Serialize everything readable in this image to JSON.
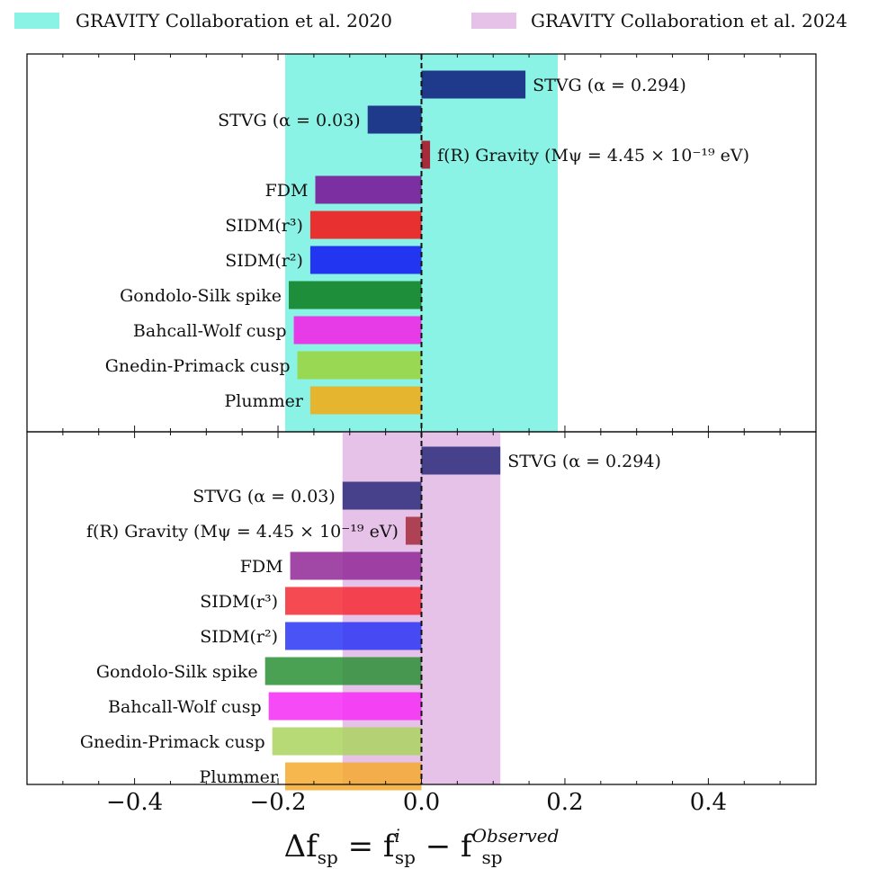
{
  "chart_data": {
    "type": "bar",
    "orientation": "horizontal",
    "xlim": [
      -0.55,
      0.55
    ],
    "xticks": [
      -0.4,
      -0.2,
      0.0,
      0.2,
      0.4
    ],
    "xtick_labels": [
      "−0.4",
      "−0.2",
      "0.0",
      "0.2",
      "0.4"
    ],
    "xlabel": "Δf_sp = f_sp^i − f_sp^Observed",
    "xlabel_parts": {
      "delta": "Δ",
      "f": "f",
      "sp": "sp",
      "eq": " = ",
      "minus": " − ",
      "sup_i": "i",
      "sup_obs": "Observed"
    },
    "legend": [
      {
        "label": "GRAVITY Collaboration et al. 2020",
        "color": "#8af3e5"
      },
      {
        "label": "GRAVITY Collaboration et al. 2024",
        "color": "#e6c1e8"
      }
    ],
    "panels": [
      {
        "name": "top",
        "band": [
          -0.19,
          0.19
        ],
        "band_color": "#8af3e5",
        "series": [
          {
            "label": "STVG (α = 0.294)",
            "value": 0.145,
            "color": "#1f3a8a"
          },
          {
            "label": "STVG (α = 0.03)",
            "value": -0.075,
            "color": "#1f3a8a"
          },
          {
            "label": "f(R) Gravity (Mψ = 4.45 × 10⁻¹⁹ eV)",
            "value": 0.012,
            "color": "#a52a3a"
          },
          {
            "label": "FDM",
            "value": -0.148,
            "color": "#7b2fa0"
          },
          {
            "label": "SIDM(r³)",
            "value": -0.155,
            "color": "#e83030"
          },
          {
            "label": "SIDM(r²)",
            "value": -0.155,
            "color": "#2235f0"
          },
          {
            "label": "Gondolo-Silk spike",
            "value": -0.185,
            "color": "#1e8e3a"
          },
          {
            "label": "Bahcall-Wolf cusp",
            "value": -0.178,
            "color": "#e83be8"
          },
          {
            "label": "Gnedin-Primack cusp",
            "value": -0.173,
            "color": "#98d852"
          },
          {
            "label": "Plummer",
            "value": -0.155,
            "color": "#e5b52f"
          }
        ]
      },
      {
        "name": "bottom",
        "band": [
          -0.11,
          0.11
        ],
        "band_color": "#e6c1e8",
        "series": [
          {
            "label": "STVG (α = 0.294)",
            "value": 0.11,
            "color": "#2a2a7a"
          },
          {
            "label": "STVG (α = 0.03)",
            "value": -0.11,
            "color": "#2a2a7a"
          },
          {
            "label": "f(R) Gravity (Mψ = 4.45 × 10⁻¹⁹ eV)",
            "value": -0.022,
            "color": "#a52a3a"
          },
          {
            "label": "FDM",
            "value": -0.183,
            "color": "#902898"
          },
          {
            "label": "SIDM(r³)",
            "value": -0.19,
            "color": "#f52a35"
          },
          {
            "label": "SIDM(r²)",
            "value": -0.19,
            "color": "#2a35f5"
          },
          {
            "label": "Gondolo-Silk spike",
            "value": -0.218,
            "color": "#2a8f35"
          },
          {
            "label": "Bahcall-Wolf cusp",
            "value": -0.213,
            "color": "#f52af5"
          },
          {
            "label": "Gnedin-Primack cusp",
            "value": -0.208,
            "color": "#aad45f"
          },
          {
            "label": "Plummer",
            "value": -0.19,
            "color": "#f5aa2f"
          }
        ]
      }
    ]
  }
}
